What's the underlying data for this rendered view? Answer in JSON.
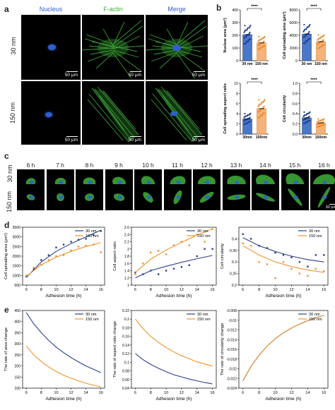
{
  "panels": {
    "a": "a",
    "b": "b",
    "c": "c",
    "d": "d",
    "e": "e"
  },
  "colors": {
    "nucleus": "#2f5fd0",
    "factin": "#3fb03a",
    "s30": "#2b3f8c",
    "s150": "#f0922b",
    "navy": "#24326e"
  },
  "panel_a": {
    "col_titles": [
      "Nucleus",
      "F-actin",
      "Merge"
    ],
    "row_labels": [
      "30 nm",
      "150 nm"
    ],
    "scale_label": "50 μm"
  },
  "panel_c": {
    "times": [
      "6 h",
      "7 h",
      "8 h",
      "9 h",
      "10 h",
      "11 h",
      "12 h",
      "13 h",
      "14 h",
      "15 h",
      "16 h"
    ],
    "row_labels": [
      "30 nm",
      "150 nm"
    ],
    "scale_label": "30 μm"
  },
  "chart_data": [
    {
      "type": "bar",
      "panel": "b",
      "ylabel": "Nuclear area (μm²)",
      "categories": [
        "30 nm",
        "150 nm"
      ],
      "values": [
        205,
        140
      ],
      "significance": "****",
      "ylim": [
        0,
        400
      ],
      "yticks": [
        "0",
        "100",
        "200",
        "300",
        "400"
      ]
    },
    {
      "type": "bar",
      "panel": "b",
      "ylabel": "Cell spreading area (μm²)",
      "categories": [
        "30 nm",
        "150 nm"
      ],
      "values": [
        4200,
        3000
      ],
      "significance": "****",
      "ylim": [
        0,
        8000
      ],
      "yticks": [
        "0",
        "2000",
        "4000",
        "6000",
        "8000"
      ]
    },
    {
      "type": "bar",
      "panel": "b",
      "ylabel": "Cell spreading aspect ratio",
      "categories": [
        "30nm",
        "150nm"
      ],
      "values": [
        3.0,
        5.0
      ],
      "significance": "****",
      "ylim": [
        0,
        10
      ],
      "yticks": [
        "0",
        "2",
        "4",
        "6",
        "8",
        "10"
      ]
    },
    {
      "type": "bar",
      "panel": "b",
      "ylabel": "Cell circularity",
      "categories": [
        "30nm",
        "150nm"
      ],
      "values": [
        0.32,
        0.22
      ],
      "significance": "****",
      "ylim": [
        0,
        1.0
      ],
      "yticks": [
        "0.0",
        "0.2",
        "0.4",
        "0.6",
        "0.8",
        "1.0"
      ]
    },
    {
      "type": "line",
      "panel": "d",
      "xlabel": "Adhesion time (h)",
      "ylabel": "Cell spreading area (μm²)",
      "xlim": [
        5.5,
        16.5
      ],
      "ylim": [
        500,
        3500
      ],
      "xticks": [
        6,
        8,
        10,
        12,
        14,
        16
      ],
      "yticks": [
        500,
        1000,
        1500,
        2000,
        2500,
        3000,
        3500
      ],
      "series": [
        {
          "name": "30 nm",
          "x": [
            6,
            7,
            8,
            9,
            10,
            11,
            12,
            13,
            14,
            15,
            16
          ],
          "y": [
            950,
            1350,
            1800,
            2050,
            2450,
            2600,
            2750,
            2850,
            2900,
            3100,
            3300
          ],
          "fit": [
            [
              6,
              900
            ],
            [
              8,
              1700
            ],
            [
              10,
              2250
            ],
            [
              12,
              2650
            ],
            [
              14,
              3000
            ],
            [
              16,
              3350
            ]
          ]
        },
        {
          "name": "150 nm",
          "x": [
            6,
            7,
            8,
            9,
            10,
            11,
            12,
            13,
            14,
            15,
            16
          ],
          "y": [
            1000,
            1400,
            1550,
            1800,
            2000,
            2050,
            2300,
            2500,
            2550,
            2600,
            2200
          ],
          "fit": [
            [
              6,
              950
            ],
            [
              8,
              1550
            ],
            [
              10,
              1950
            ],
            [
              12,
              2250
            ],
            [
              14,
              2500
            ],
            [
              16,
              2700
            ]
          ]
        }
      ]
    },
    {
      "type": "line",
      "panel": "d",
      "xlabel": "Adhesion time (h)",
      "ylabel": "Cell aspect ratio",
      "xlim": [
        5.5,
        16.5
      ],
      "ylim": [
        1.0,
        2.6
      ],
      "xticks": [
        6,
        8,
        10,
        12,
        14,
        16
      ],
      "yticks": [
        1.0,
        1.2,
        1.4,
        1.6,
        1.8,
        2.0,
        2.2,
        2.4,
        2.6
      ],
      "series": [
        {
          "name": "30 nm",
          "x": [
            6,
            7,
            8,
            9,
            10,
            11,
            12,
            13,
            14,
            15,
            16
          ],
          "y": [
            1.35,
            1.3,
            1.4,
            1.3,
            1.4,
            1.45,
            1.5,
            1.55,
            1.8,
            2.0,
            2.0
          ],
          "fit": [
            [
              6,
              1.2
            ],
            [
              8,
              1.4
            ],
            [
              10,
              1.52
            ],
            [
              12,
              1.63
            ],
            [
              14,
              1.73
            ],
            [
              16,
              1.82
            ]
          ]
        },
        {
          "name": "150 nm",
          "x": [
            6,
            7,
            8,
            9,
            10,
            11,
            12,
            13,
            14,
            15,
            16
          ],
          "y": [
            1.3,
            1.6,
            1.9,
            1.95,
            1.85,
            2.1,
            2.2,
            2.1,
            2.4,
            2.2,
            2.55
          ],
          "fit": [
            [
              6,
              1.35
            ],
            [
              8,
              1.72
            ],
            [
              10,
              1.97
            ],
            [
              12,
              2.18
            ],
            [
              14,
              2.38
            ],
            [
              16,
              2.55
            ]
          ]
        }
      ]
    },
    {
      "type": "line",
      "panel": "d",
      "xlabel": "Adhesion time (h)",
      "ylabel": "Cell circularity",
      "xlim": [
        5.5,
        16.5
      ],
      "ylim": [
        0.2,
        0.45
      ],
      "xticks": [
        6,
        8,
        10,
        12,
        14,
        16
      ],
      "yticks": [
        0.2,
        0.25,
        0.3,
        0.35,
        0.4
      ],
      "series": [
        {
          "name": "30 nm",
          "x": [
            6,
            7,
            8,
            9,
            10,
            11,
            12,
            13,
            14,
            15,
            16
          ],
          "y": [
            0.42,
            0.4,
            0.37,
            0.36,
            0.34,
            0.33,
            0.32,
            0.3,
            0.28,
            0.33,
            0.33
          ],
          "fit": [
            [
              6,
              0.405
            ],
            [
              8,
              0.37
            ],
            [
              10,
              0.345
            ],
            [
              12,
              0.325
            ],
            [
              14,
              0.31
            ],
            [
              16,
              0.3
            ]
          ]
        },
        {
          "name": "150 nm",
          "x": [
            6,
            7,
            8,
            9,
            10,
            11,
            12,
            13,
            14,
            15,
            16
          ],
          "y": [
            0.38,
            0.37,
            0.3,
            0.29,
            0.23,
            0.3,
            0.27,
            0.25,
            0.24,
            0.27,
            0.26
          ],
          "fit": [
            [
              6,
              0.37
            ],
            [
              8,
              0.33
            ],
            [
              10,
              0.3
            ],
            [
              12,
              0.28
            ],
            [
              14,
              0.265
            ],
            [
              16,
              0.255
            ]
          ]
        }
      ]
    },
    {
      "type": "line",
      "panel": "e",
      "xlabel": "Adhesion time (h)",
      "ylabel": "The rate of area change",
      "xlim": [
        5.5,
        16.5
      ],
      "ylim": [
        100,
        450
      ],
      "xticks": [
        6,
        8,
        10,
        12,
        14,
        16
      ],
      "yticks": [
        100,
        150,
        200,
        250,
        300,
        350,
        400,
        450
      ],
      "series": [
        {
          "name": "30 nm",
          "fit": [
            [
              6,
              440
            ],
            [
              7,
              390
            ],
            [
              8,
              350
            ],
            [
              9,
              315
            ],
            [
              10,
              285
            ],
            [
              11,
              260
            ],
            [
              12,
              238
            ],
            [
              13,
              218
            ],
            [
              14,
              200
            ],
            [
              15,
              185
            ],
            [
              16,
              170
            ]
          ]
        },
        {
          "name": "150 nm",
          "fit": [
            [
              6,
              290
            ],
            [
              7,
              250
            ],
            [
              8,
              220
            ],
            [
              9,
              195
            ],
            [
              10,
              175
            ],
            [
              11,
              158
            ],
            [
              12,
              145
            ],
            [
              13,
              133
            ],
            [
              14,
              122
            ],
            [
              15,
              113
            ],
            [
              16,
              105
            ]
          ]
        }
      ]
    },
    {
      "type": "line",
      "panel": "e",
      "xlabel": "Adhesion time (h)",
      "ylabel": "The rate of aspect ratio change",
      "xlim": [
        5.5,
        16.5
      ],
      "ylim": [
        0.04,
        0.22
      ],
      "xticks": [
        6,
        8,
        10,
        12,
        14,
        16
      ],
      "yticks": [
        0.04,
        0.06,
        0.08,
        0.1,
        0.12,
        0.14,
        0.16,
        0.18,
        0.2,
        0.22
      ],
      "series": [
        {
          "name": "30 nm",
          "fit": [
            [
              6,
              0.12
            ],
            [
              7,
              0.106
            ],
            [
              8,
              0.095
            ],
            [
              9,
              0.086
            ],
            [
              10,
              0.078
            ],
            [
              11,
              0.071
            ],
            [
              12,
              0.066
            ],
            [
              13,
              0.061
            ],
            [
              14,
              0.057
            ],
            [
              15,
              0.053
            ],
            [
              16,
              0.05
            ]
          ]
        },
        {
          "name": "150 nm",
          "fit": [
            [
              6,
              0.2
            ],
            [
              7,
              0.178
            ],
            [
              8,
              0.16
            ],
            [
              9,
              0.146
            ],
            [
              10,
              0.134
            ],
            [
              11,
              0.124
            ],
            [
              12,
              0.115
            ],
            [
              13,
              0.108
            ],
            [
              14,
              0.101
            ],
            [
              15,
              0.096
            ],
            [
              16,
              0.091
            ]
          ]
        }
      ]
    },
    {
      "type": "line",
      "panel": "e",
      "xlabel": "Adhesion time (h)",
      "ylabel": "The rate of circularity change",
      "xlim": [
        5.5,
        16.5
      ],
      "ylim": [
        -0.024,
        -0.008
      ],
      "xticks": [
        6,
        8,
        10,
        12,
        14,
        16
      ],
      "yticks": [
        -0.024,
        -0.022,
        -0.02,
        -0.018,
        -0.016,
        -0.014,
        -0.012,
        -0.01,
        -0.008
      ],
      "series": [
        {
          "name": "30 nm",
          "fit": [
            [
              6,
              -0.0225
            ],
            [
              7,
              -0.0195
            ],
            [
              8,
              -0.0172
            ],
            [
              9,
              -0.0153
            ],
            [
              10,
              -0.0138
            ],
            [
              11,
              -0.0126
            ],
            [
              12,
              -0.0116
            ],
            [
              13,
              -0.0108
            ],
            [
              14,
              -0.0101
            ],
            [
              15,
              -0.0095
            ],
            [
              16,
              -0.009
            ]
          ]
        },
        {
          "name": "150 nm",
          "fit": [
            [
              6,
              -0.0225
            ],
            [
              7,
              -0.0195
            ],
            [
              8,
              -0.0172
            ],
            [
              9,
              -0.0153
            ],
            [
              10,
              -0.0138
            ],
            [
              11,
              -0.0126
            ],
            [
              12,
              -0.0116
            ],
            [
              13,
              -0.0108
            ],
            [
              14,
              -0.0101
            ],
            [
              15,
              -0.0095
            ],
            [
              16,
              -0.009
            ]
          ]
        }
      ]
    }
  ]
}
